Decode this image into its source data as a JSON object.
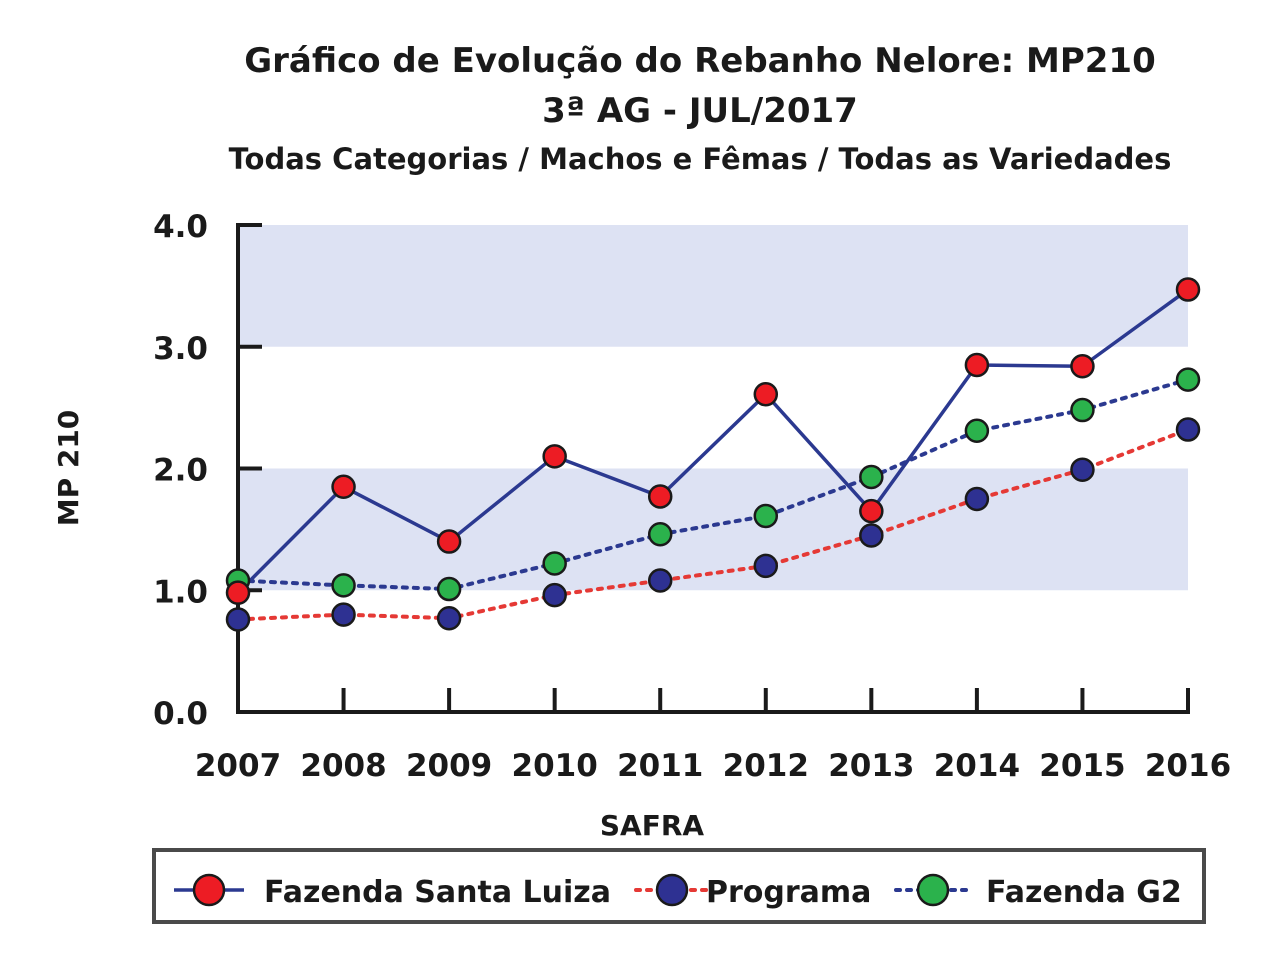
{
  "chart_data": {
    "type": "line",
    "title": "Gráfico de Evolução do Rebanho Nelore: MP210",
    "title_line2": "3ª AG - JUL/2017",
    "subtitle": "Todas Categorias / Machos e Fêmas / Todas as Variedades",
    "xlabel": "SAFRA",
    "ylabel": "MP 210",
    "ylim": [
      0,
      4
    ],
    "yticks": [
      "0.0",
      "1.0",
      "2.0",
      "3.0",
      "4.0"
    ],
    "yticks_values": [
      0,
      1,
      2,
      3,
      4
    ],
    "categories": [
      "2007",
      "2008",
      "2009",
      "2010",
      "2011",
      "2012",
      "2013",
      "2014",
      "2015",
      "2016"
    ],
    "bands": [
      [
        1,
        2
      ],
      [
        3,
        4
      ]
    ],
    "legend_position": "bottom",
    "series": [
      {
        "name": "Fazenda Santa Luiza",
        "values": [
          0.98,
          1.85,
          1.4,
          2.1,
          1.77,
          2.61,
          1.65,
          2.85,
          2.84,
          3.47
        ],
        "line_color": "#2b3990",
        "marker_color": "#ed1c24",
        "line_style": "solid"
      },
      {
        "name": "Programa",
        "values": [
          0.76,
          0.8,
          0.77,
          0.96,
          1.08,
          1.2,
          1.45,
          1.75,
          1.99,
          2.32
        ],
        "line_color": "#e53935",
        "marker_color": "#2e3192",
        "line_style": "dotted"
      },
      {
        "name": "Fazenda G2",
        "values": [
          1.08,
          1.04,
          1.01,
          1.22,
          1.46,
          1.61,
          1.93,
          2.31,
          2.48,
          2.73
        ],
        "line_color": "#2b3990",
        "marker_color": "#2bb24c",
        "line_style": "dotted"
      }
    ],
    "colors": {
      "band": "#dde2f3",
      "axis": "#1a1a1a"
    }
  }
}
